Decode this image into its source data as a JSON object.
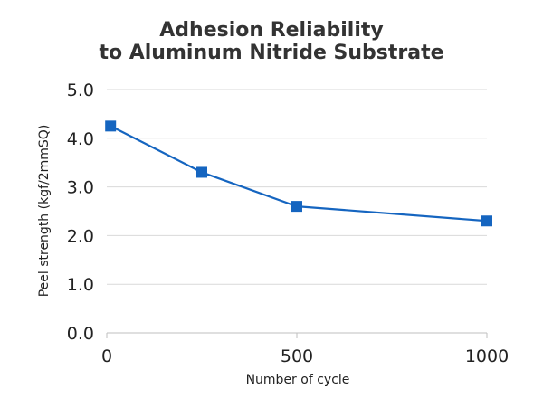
{
  "chart_data": {
    "type": "line",
    "title_lines": [
      "Adhesion Reliability",
      "to Aluminum Nitride Substrate"
    ],
    "xlabel": "Number of cycle",
    "ylabel": "Peel strength (kgf/2mmSQ)",
    "xlim": [
      0,
      1000
    ],
    "ylim": [
      0,
      5
    ],
    "x_ticks": [
      0,
      500,
      1000
    ],
    "x_tick_labels": [
      "0",
      "500",
      "1000"
    ],
    "y_ticks": [
      0,
      1,
      2,
      3,
      4,
      5
    ],
    "y_tick_labels": [
      "0.0",
      "1.0",
      "2.0",
      "3.0",
      "4.0",
      "5.0"
    ],
    "grid": true,
    "series": [
      {
        "color": "#1565c0",
        "marker": "square",
        "x": [
          10,
          250,
          500,
          1000
        ],
        "y": [
          4.25,
          3.3,
          2.6,
          2.3
        ]
      }
    ]
  }
}
